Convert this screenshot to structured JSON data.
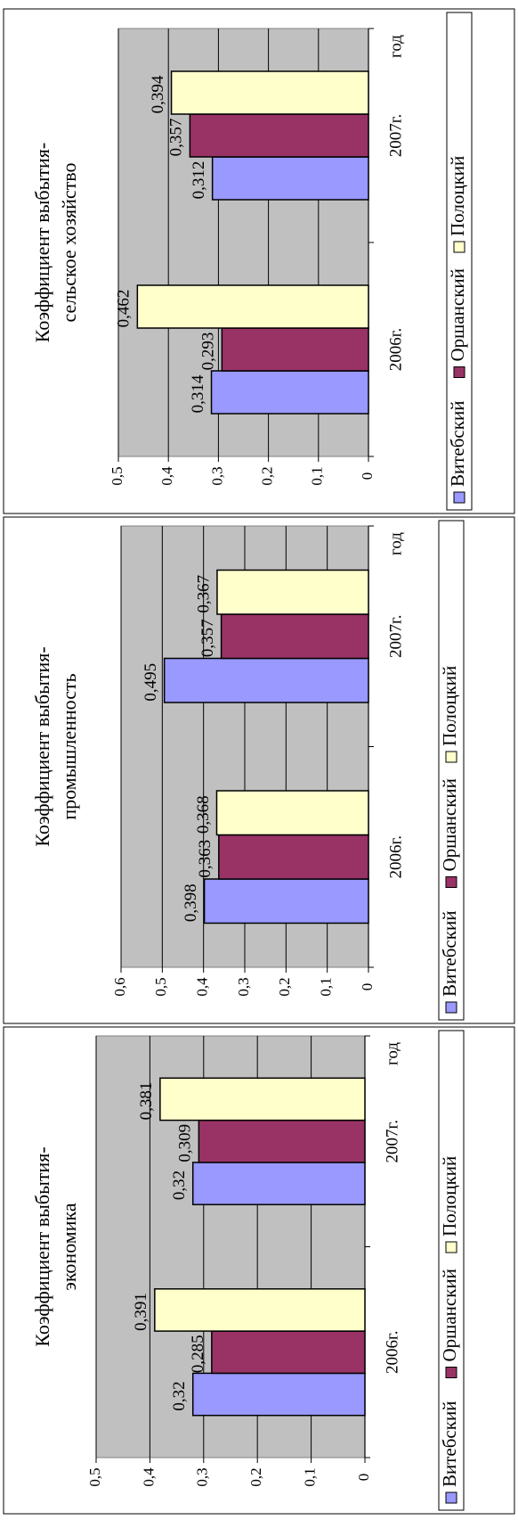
{
  "colors": {
    "plot_bg": "#c0c0c0",
    "gridline": "#000000",
    "vitebsk": "#9999ff",
    "orsha": "#993366",
    "polotsk": "#ffffcc"
  },
  "chart_data": [
    {
      "type": "bar",
      "title": [
        "Коэффициент выбытия-",
        "экономика"
      ],
      "categories": [
        "2006г.",
        "2007г."
      ],
      "xlabel": "год",
      "ylim": [
        0,
        0.5
      ],
      "yticks": [
        "0",
        "0,1",
        "0,2",
        "0,3",
        "0,4",
        "0,5"
      ],
      "series": [
        {
          "name": "Витебский",
          "values": [
            0.32,
            0.32
          ],
          "labels": [
            "0,32",
            "0,32"
          ]
        },
        {
          "name": "Оршанский",
          "values": [
            0.285,
            0.309
          ],
          "labels": [
            "0,285",
            "0,309"
          ]
        },
        {
          "name": "Полоцкий",
          "values": [
            0.391,
            0.381
          ],
          "labels": [
            "0,391",
            "0,381"
          ]
        }
      ],
      "grid": true,
      "legend": "bottom"
    },
    {
      "type": "bar",
      "title": [
        "Коэффициент выбытия-",
        "промышленность"
      ],
      "categories": [
        "2006г.",
        "2007г."
      ],
      "xlabel": "год",
      "ylim": [
        0,
        0.6
      ],
      "yticks": [
        "0",
        "0,1",
        "0,2",
        "0,3",
        "0,4",
        "0,5",
        "0,6"
      ],
      "series": [
        {
          "name": "Витебский",
          "values": [
            0.398,
            0.495
          ],
          "labels": [
            "0,398",
            "0,495"
          ]
        },
        {
          "name": "Оршанский",
          "values": [
            0.363,
            0.357
          ],
          "labels": [
            "0,363",
            "0,357"
          ]
        },
        {
          "name": "Полоцкий",
          "values": [
            0.368,
            0.367
          ],
          "labels": [
            "0,368",
            "0,367"
          ]
        }
      ],
      "grid": true,
      "legend": "bottom"
    },
    {
      "type": "bar",
      "title": [
        "Коэффициент выбытия-",
        "сельское хозяйство"
      ],
      "categories": [
        "2006г.",
        "2007г."
      ],
      "xlabel": "год",
      "ylim": [
        0,
        0.5
      ],
      "yticks": [
        "0",
        "0,1",
        "0,2",
        "0,3",
        "0,4",
        "0,5"
      ],
      "series": [
        {
          "name": "Витебский",
          "values": [
            0.314,
            0.312
          ],
          "labels": [
            "0,314",
            "0,312"
          ]
        },
        {
          "name": "Оршанский",
          "values": [
            0.293,
            0.357
          ],
          "labels": [
            "0,293",
            "0,357"
          ]
        },
        {
          "name": "Полоцкий",
          "values": [
            0.462,
            0.394
          ],
          "labels": [
            "0,462",
            "0,394"
          ]
        }
      ],
      "grid": true,
      "legend": "bottom"
    }
  ]
}
